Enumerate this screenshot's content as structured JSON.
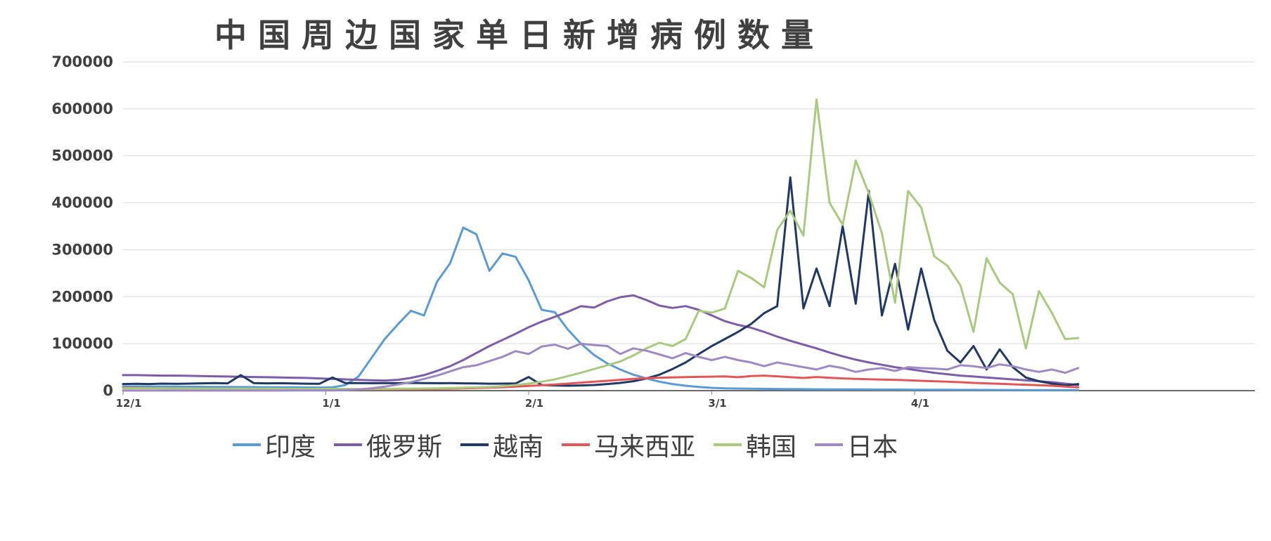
{
  "chart_data": {
    "type": "line",
    "title": "中国周边国家单日新增病例数量",
    "grid": "horizontal",
    "legend_position": "bottom",
    "colors": {
      "background": "#ffffff",
      "grid": "#d9d9d9",
      "axis": "#6a6a6a",
      "text": "#404040"
    },
    "x_axis": {
      "unit": "days since 12/1",
      "day_min": 0,
      "day_max": 173,
      "tick_days": [
        0,
        31,
        62,
        90,
        121
      ],
      "tick_labels": [
        "12/1",
        "1/1",
        "2/1",
        "3/1",
        "4/1"
      ]
    },
    "y_axis": {
      "min": 0,
      "max": 700000,
      "step": 100000,
      "tick_labels": [
        "0",
        "100000",
        "200000",
        "300000",
        "400000",
        "500000",
        "600000",
        "700000"
      ]
    },
    "x_days": [
      0,
      2,
      4,
      6,
      8,
      10,
      12,
      14,
      16,
      18,
      20,
      22,
      24,
      26,
      28,
      30,
      32,
      34,
      36,
      38,
      40,
      42,
      44,
      46,
      48,
      50,
      52,
      54,
      56,
      58,
      60,
      62,
      64,
      66,
      68,
      70,
      72,
      74,
      76,
      78,
      80,
      82,
      84,
      86,
      88,
      90,
      92,
      94,
      96,
      98,
      100,
      102,
      104,
      106,
      108,
      110,
      112,
      114,
      116,
      118,
      120,
      122,
      124,
      126,
      128,
      130,
      132,
      134,
      136,
      138,
      140,
      142,
      144,
      146
    ],
    "series": [
      {
        "key": "india",
        "name": "印度",
        "color": "#5B9BD5",
        "values": [
          9000,
          9000,
          8800,
          8600,
          8500,
          8300,
          8200,
          8000,
          7800,
          7700,
          7500,
          7300,
          7100,
          7000,
          6800,
          6600,
          7000,
          12000,
          30000,
          70000,
          110000,
          141000,
          170000,
          160000,
          232000,
          271000,
          347000,
          333000,
          255000,
          292000,
          285000,
          235000,
          172000,
          167000,
          130000,
          100000,
          76000,
          58000,
          45000,
          34000,
          26000,
          19000,
          14000,
          10500,
          8000,
          6000,
          5000,
          4500,
          4200,
          3900,
          3600,
          3300,
          3100,
          2900,
          2700,
          2600,
          2500,
          2400,
          2300,
          2200,
          2100,
          2000,
          1900,
          1800,
          1700,
          1600,
          1500,
          1400,
          1300,
          1200,
          1100,
          1000,
          1000,
          1100
        ]
      },
      {
        "key": "russia",
        "name": "俄罗斯",
        "color": "#7D5CA8",
        "values": [
          33000,
          33000,
          32500,
          32000,
          32000,
          31500,
          31000,
          30500,
          30000,
          29500,
          29000,
          28500,
          28000,
          27500,
          27000,
          26000,
          25000,
          24000,
          23000,
          22000,
          21500,
          23000,
          27000,
          33000,
          42000,
          52000,
          65000,
          80000,
          95000,
          108000,
          121000,
          135000,
          147000,
          157000,
          168000,
          180000,
          177000,
          190000,
          199000,
          203000,
          193000,
          181000,
          176000,
          180000,
          172000,
          160000,
          148000,
          140000,
          134000,
          125000,
          115000,
          106000,
          98000,
          90000,
          81000,
          73000,
          66000,
          60000,
          55000,
          50000,
          46000,
          42000,
          38000,
          35000,
          32000,
          30000,
          28000,
          26000,
          24000,
          22000,
          20000,
          18000,
          15000,
          12000
        ]
      },
      {
        "key": "vietnam",
        "name": "越南",
        "color": "#1F3864",
        "values": [
          14000,
          14500,
          14000,
          15000,
          14500,
          15000,
          15500,
          16000,
          15500,
          33000,
          16000,
          15500,
          15800,
          15200,
          14800,
          14500,
          28000,
          16000,
          16000,
          15800,
          16200,
          15900,
          16500,
          16200,
          15800,
          16000,
          15500,
          15200,
          14800,
          15000,
          15200,
          29000,
          12000,
          11000,
          10500,
          11000,
          12000,
          14000,
          16500,
          20000,
          26000,
          34000,
          46000,
          60000,
          78000,
          95000,
          110000,
          125000,
          142000,
          165000,
          180000,
          454000,
          175000,
          260000,
          180000,
          350000,
          185000,
          425000,
          160000,
          270000,
          130000,
          260000,
          150000,
          85000,
          60000,
          95000,
          45000,
          88000,
          50000,
          28000,
          20000,
          15000,
          11000,
          14000
        ]
      },
      {
        "key": "malaysia",
        "name": "马来西亚",
        "color": "#E15759",
        "values": [
          6000,
          5500,
          5200,
          5000,
          4800,
          4500,
          4300,
          4100,
          3900,
          3700,
          3600,
          3500,
          3400,
          3300,
          3200,
          3100,
          3000,
          2900,
          2850,
          2800,
          2900,
          3000,
          3200,
          3500,
          3800,
          4200,
          4800,
          5500,
          6300,
          7300,
          8500,
          10000,
          11500,
          13200,
          15000,
          17000,
          19000,
          21000,
          23000,
          25000,
          26500,
          27500,
          28200,
          28800,
          29300,
          29800,
          30200,
          28500,
          31000,
          32000,
          30500,
          28500,
          27000,
          29000,
          27500,
          26000,
          25000,
          24200,
          23500,
          23000,
          22000,
          21000,
          20000,
          19000,
          18000,
          16500,
          15500,
          14500,
          13500,
          12500,
          11500,
          10500,
          8500,
          7000
        ]
      },
      {
        "key": "korea",
        "name": "韩国",
        "color": "#A9C97E",
        "values": [
          5000,
          5100,
          5000,
          4800,
          4700,
          4500,
          4400,
          4300,
          4200,
          4100,
          4000,
          4000,
          3900,
          3800,
          3800,
          3700,
          3700,
          3600,
          3500,
          3600,
          3800,
          4000,
          4300,
          4600,
          5000,
          5500,
          6200,
          7000,
          8000,
          9500,
          12000,
          15000,
          19000,
          24000,
          31000,
          38000,
          46000,
          54000,
          62000,
          75000,
          90000,
          102000,
          95000,
          110000,
          170000,
          166000,
          175000,
          255000,
          240000,
          220000,
          342000,
          383000,
          330000,
          620000,
          400000,
          353000,
          490000,
          420000,
          335000,
          187000,
          425000,
          390000,
          286000,
          266000,
          224000,
          125000,
          282000,
          230000,
          205000,
          90000,
          212000,
          165000,
          110000,
          112000
        ]
      },
      {
        "key": "japan",
        "name": "日本",
        "color": "#9E8AC3",
        "values": [
          150,
          140,
          150,
          160,
          150,
          160,
          170,
          160,
          170,
          180,
          190,
          200,
          220,
          250,
          300,
          400,
          500,
          1200,
          2500,
          5000,
          8500,
          13000,
          18000,
          25000,
          32000,
          41000,
          50000,
          54000,
          63000,
          72000,
          84000,
          78000,
          94000,
          98000,
          89000,
          100000,
          97000,
          95000,
          78000,
          90000,
          85000,
          77000,
          69000,
          80000,
          72000,
          65000,
          72000,
          65000,
          60000,
          52000,
          60000,
          55000,
          50000,
          45000,
          53000,
          48000,
          40000,
          45000,
          48000,
          42000,
          50000,
          48000,
          47000,
          45000,
          54000,
          52000,
          48000,
          56000,
          52000,
          45000,
          40000,
          45000,
          38000,
          48000
        ]
      }
    ]
  }
}
